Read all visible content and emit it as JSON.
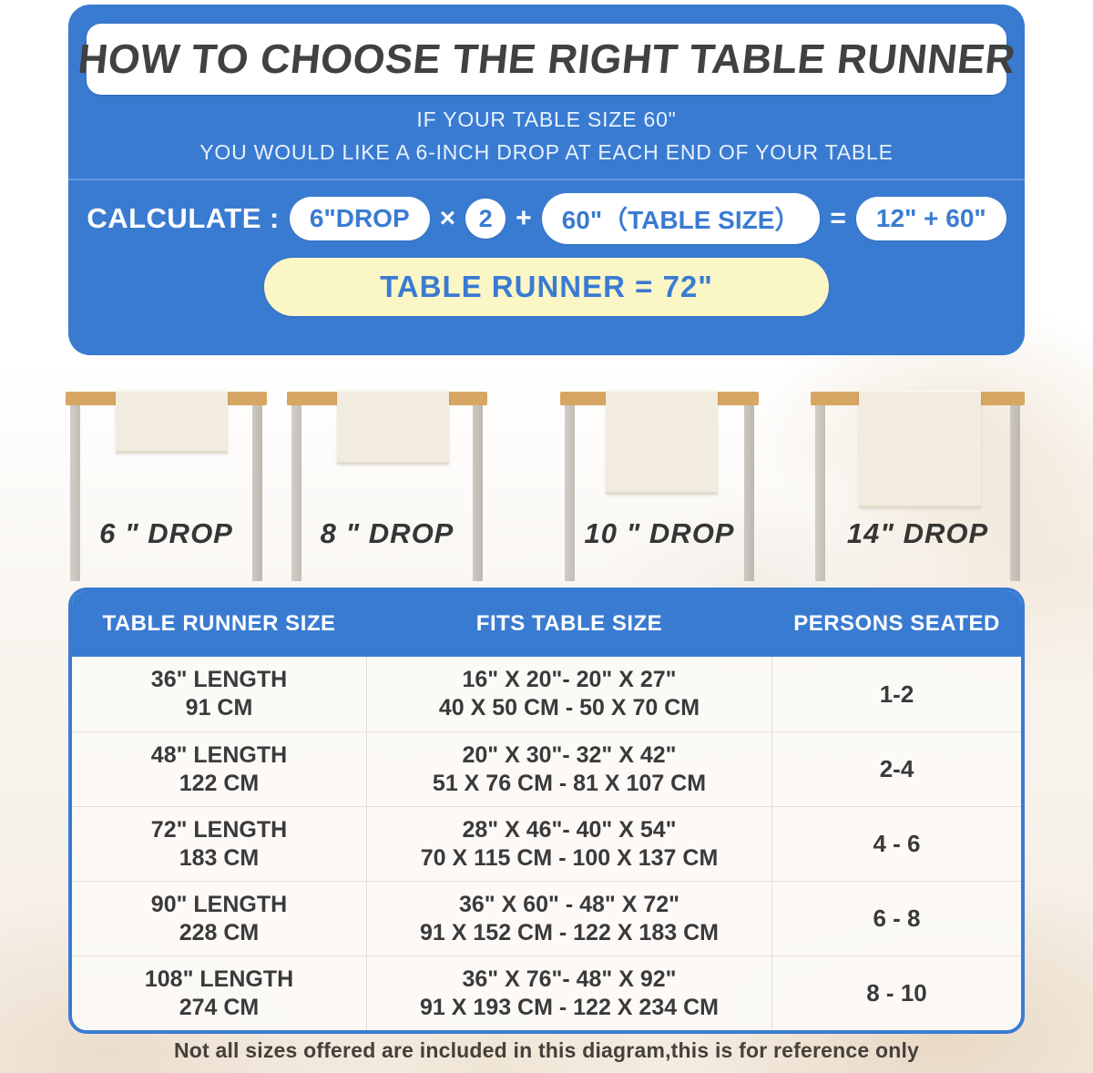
{
  "colors": {
    "panel_blue": "#3a7bd2",
    "banner_yellow": "#faf6c6",
    "tabletop_wood": "#d8a663",
    "runner_fabric": "#f1ecdf",
    "table_leg": "#c9c4bc",
    "title_text": "#414141"
  },
  "header": {
    "title": "HOW TO CHOOSE THE RIGHT TABLE RUNNER",
    "subtitle_line1": "IF YOUR TABLE SIZE 60\"",
    "subtitle_line2": "YOU WOULD LIKE A 6-INCH DROP AT EACH END OF YOUR TABLE"
  },
  "calculation": {
    "label": "CALCULATE :",
    "drop_pill": "6\"DROP",
    "multiply_sign": "×",
    "multiplier": "2",
    "plus_sign": "+",
    "table_size_pill": "60\"（TABLE SIZE）",
    "equals_sign": "=",
    "result_pill": "12\" + 60\"",
    "result_banner": "TABLE RUNNER = 72\""
  },
  "figures": [
    {
      "label": "6 \" DROP",
      "drop_inches": 6
    },
    {
      "label": "8 \" DROP",
      "drop_inches": 8
    },
    {
      "label": "10 \" DROP",
      "drop_inches": 10
    },
    {
      "label": "14\" DROP",
      "drop_inches": 14
    }
  ],
  "size_table": {
    "headers": [
      "TABLE RUNNER SIZE",
      "FITS TABLE SIZE",
      "PERSONS SEATED"
    ],
    "rows": [
      {
        "size1": "36\" LENGTH",
        "size2": "91 CM",
        "fits1": "16\" X 20\"- 20\" X 27\"",
        "fits2": "40 X 50 CM - 50 X 70 CM",
        "persons": "1-2"
      },
      {
        "size1": "48\" LENGTH",
        "size2": "122 CM",
        "fits1": "20\" X 30\"- 32\" X 42\"",
        "fits2": "51 X 76 CM - 81 X 107 CM",
        "persons": "2-4"
      },
      {
        "size1": "72\" LENGTH",
        "size2": "183 CM",
        "fits1": "28\" X 46\"- 40\" X 54\"",
        "fits2": "70 X 115 CM - 100 X 137 CM",
        "persons": "4 - 6"
      },
      {
        "size1": "90\" LENGTH",
        "size2": "228 CM",
        "fits1": "36\" X 60\" - 48\" X 72\"",
        "fits2": "91 X 152 CM - 122 X 183 CM",
        "persons": "6 - 8"
      },
      {
        "size1": "108\" LENGTH",
        "size2": "274 CM",
        "fits1": "36\" X 76\"- 48\" X 92\"",
        "fits2": "91 X 193 CM - 122 X 234 CM",
        "persons": "8 - 10"
      }
    ]
  },
  "footer": {
    "note": "Not all sizes offered are included in this diagram,this is for reference only"
  }
}
